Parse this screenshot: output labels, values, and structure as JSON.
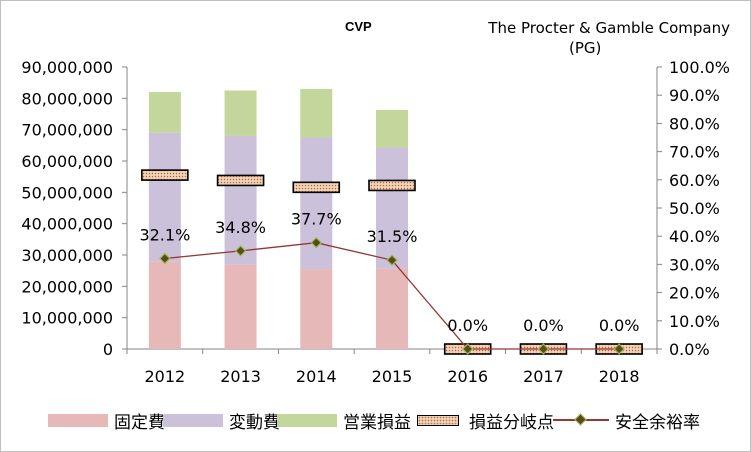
{
  "chart_data": {
    "type": "bar",
    "title": "CVP",
    "company": "The Procter & Gamble Company",
    "ticker": "(PG)",
    "categories": [
      "2012",
      "2013",
      "2014",
      "2015",
      "2016",
      "2017",
      "2018"
    ],
    "ylim": [
      0,
      90000000
    ],
    "y_ticks": [
      "0",
      "10,000,000",
      "20,000,000",
      "30,000,000",
      "40,000,000",
      "50,000,000",
      "60,000,000",
      "70,000,000",
      "80,000,000",
      "90,000,000"
    ],
    "y2lim": [
      0,
      100
    ],
    "y2_ticks": [
      "0.0%",
      "10.0%",
      "20.0%",
      "30.0%",
      "40.0%",
      "50.0%",
      "60.0%",
      "70.0%",
      "80.0%",
      "90.0%",
      "100.0%"
    ],
    "series": [
      {
        "name": "固定費",
        "type": "stacked-bar",
        "color": "#e6b9b8",
        "values": [
          28000000,
          27000000,
          25500000,
          25800000,
          0,
          0,
          0
        ]
      },
      {
        "name": "変動費",
        "type": "stacked-bar",
        "color": "#ccc1da",
        "values": [
          41000000,
          41000000,
          42000000,
          38500000,
          0,
          0,
          0
        ]
      },
      {
        "name": "営業損益",
        "type": "stacked-bar",
        "color": "#c3d69b",
        "values": [
          13000000,
          14500000,
          15500000,
          12000000,
          0,
          0,
          0
        ]
      },
      {
        "name": "損益分岐点",
        "type": "marker",
        "color": "#f4d3b8",
        "values": [
          55500000,
          53800000,
          51600000,
          52200000,
          0,
          0,
          0
        ]
      },
      {
        "name": "安全余裕率",
        "type": "line",
        "axis": "right",
        "color": "#943634",
        "values": [
          32.1,
          34.8,
          37.7,
          31.5,
          0.0,
          0.0,
          0.0
        ]
      }
    ],
    "data_labels": [
      "32.1%",
      "34.8%",
      "37.7%",
      "31.5%",
      "0.0%",
      "0.0%",
      "0.0%"
    ],
    "legend_position": "bottom"
  }
}
